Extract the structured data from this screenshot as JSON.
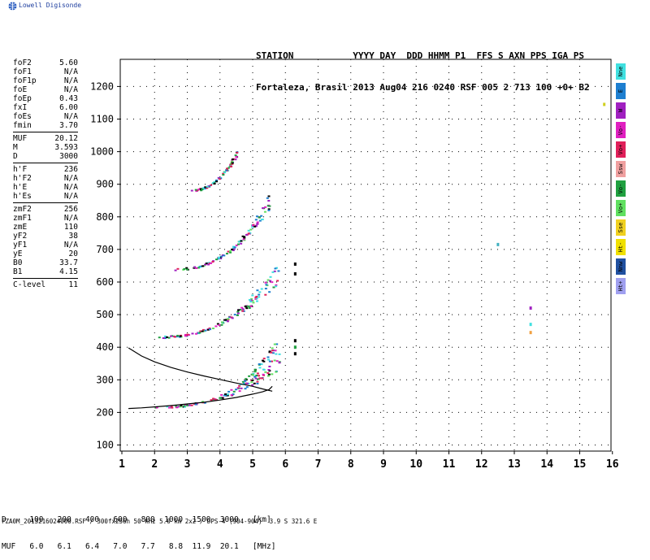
{
  "brand": {
    "name": "Lowell Digisonde",
    "logo_icon": "globe-logo-icon",
    "color": "#1f3f9f"
  },
  "header": {
    "labels": "STATION           YYYY DAY  DDD HHMM P1  FFS S AXN PPS IGA PS",
    "values": "Fortaleza, Brasil 2013 Aug04 216 0240 RSF 005 2 713 100 +0+ B2"
  },
  "params": [
    {
      "name": "foF2",
      "value": "5.60"
    },
    {
      "name": "foF1",
      "value": "N/A"
    },
    {
      "name": "foF1p",
      "value": "N/A"
    },
    {
      "name": "foE",
      "value": "N/A"
    },
    {
      "name": "foEp",
      "value": "0.43"
    },
    {
      "name": "fxI",
      "value": "6.00"
    },
    {
      "name": "foEs",
      "value": "N/A"
    },
    {
      "name": "fmin",
      "value": "3.70"
    },
    {
      "sep": true
    },
    {
      "name": "MUF",
      "value": "20.12"
    },
    {
      "name": "M",
      "value": "3.593"
    },
    {
      "name": "D",
      "value": "3000"
    },
    {
      "sep": true
    },
    {
      "name": "h'F",
      "value": "236"
    },
    {
      "name": "h'F2",
      "value": "N/A"
    },
    {
      "name": "h'E",
      "value": "N/A"
    },
    {
      "name": "h'Es",
      "value": "N/A"
    },
    {
      "sep": true
    },
    {
      "name": "zmF2",
      "value": "256"
    },
    {
      "name": "zmF1",
      "value": "N/A"
    },
    {
      "name": "zmE",
      "value": "110"
    },
    {
      "name": "yF2",
      "value": "38"
    },
    {
      "name": "yF1",
      "value": "N/A"
    },
    {
      "name": "yE",
      "value": "20"
    },
    {
      "name": "B0",
      "value": "33.7"
    },
    {
      "name": "B1",
      "value": "4.15"
    },
    {
      "sep": true
    },
    {
      "name": "C-level",
      "value": "11"
    }
  ],
  "legend": [
    {
      "label": "Nne",
      "color": "#40e0e0"
    },
    {
      "label": "E",
      "color": "#1e7fd0"
    },
    {
      "label": "W",
      "color": "#a020c0"
    },
    {
      "label": "Vo-",
      "color": "#e020c0"
    },
    {
      "label": "Vo+",
      "color": "#e0205a"
    },
    {
      "label": "Ssw",
      "color": "#f0a0a0"
    },
    {
      "label": "Vo-",
      "color": "#20a040"
    },
    {
      "label": "Vo+",
      "color": "#60e060"
    },
    {
      "label": "Sse",
      "color": "#f0d020"
    },
    {
      "label": "Ht-",
      "color": "#f0e000"
    },
    {
      "label": "Nnw",
      "color": "#2050a0"
    },
    {
      "label": "Ht+",
      "color": "#a0a0f0"
    }
  ],
  "muf_table": {
    "d_row": "D     100   200   400   600   800  1000  1500  3000   [km]",
    "muf_row": "MUF   6.0   6.1   6.4   7.0   7.7   8.8  11.9  20.1   [MHz]"
  },
  "footer": "FZA0M_2013216024000.RSF / 300fx256h 50 kHz 5.0 km 2x2 / DPS-4 (904-904)  3.9 S 321.6 E",
  "chart_data": {
    "type": "scatter",
    "xlim": [
      1,
      16
    ],
    "ylim": [
      100,
      1300
    ],
    "x_ticks": [
      1,
      2,
      3,
      4,
      5,
      6,
      7,
      8,
      9,
      10,
      11,
      12,
      13,
      14,
      15,
      16
    ],
    "y_ticks": [
      100,
      200,
      300,
      400,
      500,
      600,
      700,
      800,
      900,
      1000,
      1100,
      1200
    ],
    "grid": "dotted",
    "profile_upper": [
      [
        1.2,
        398
      ],
      [
        1.6,
        373
      ],
      [
        2.0,
        355
      ],
      [
        2.5,
        338
      ],
      [
        3.0,
        324
      ],
      [
        3.5,
        312
      ],
      [
        4.0,
        301
      ],
      [
        4.5,
        290
      ],
      [
        5.0,
        280
      ],
      [
        5.3,
        272
      ],
      [
        5.6,
        265
      ]
    ],
    "profile_lower": [
      [
        1.2,
        212
      ],
      [
        1.6,
        214
      ],
      [
        2.0,
        217
      ],
      [
        2.5,
        221
      ],
      [
        3.0,
        226
      ],
      [
        3.5,
        231
      ],
      [
        4.0,
        238
      ],
      [
        4.5,
        246
      ],
      [
        5.0,
        256
      ],
      [
        5.3,
        263
      ],
      [
        5.5,
        270
      ],
      [
        5.6,
        280
      ]
    ],
    "echo_traces": [
      {
        "name": "1st hop",
        "x0": 2.0,
        "x1": 5.8,
        "h0": 217,
        "h1": 330,
        "steep": 4
      },
      {
        "name": "2nd hop",
        "x0": 2.1,
        "x1": 5.8,
        "h0": 432,
        "h1": 600,
        "steep": 3
      },
      {
        "name": "3rd hop",
        "x0": 2.6,
        "x1": 5.5,
        "h0": 640,
        "h1": 820,
        "steep": 2
      },
      {
        "name": "4th hop",
        "x0": 3.0,
        "x1": 4.5,
        "h0": 880,
        "h1": 980,
        "steep": 1
      }
    ],
    "scatter_points": [
      {
        "x": 6.3,
        "y": 655,
        "color": "#000000"
      },
      {
        "x": 6.3,
        "y": 625,
        "color": "#000000"
      },
      {
        "x": 6.3,
        "y": 420,
        "color": "#000000"
      },
      {
        "x": 6.3,
        "y": 400,
        "color": "#20a040"
      },
      {
        "x": 6.3,
        "y": 380,
        "color": "#000000"
      },
      {
        "x": 12.5,
        "y": 715,
        "color": "#40b0c0"
      },
      {
        "x": 13.5,
        "y": 520,
        "color": "#a020c0"
      },
      {
        "x": 13.5,
        "y": 470,
        "color": "#40e0e0"
      },
      {
        "x": 13.5,
        "y": 445,
        "color": "#f0a040"
      },
      {
        "x": 15.75,
        "y": 1145,
        "color": "#d0d020"
      }
    ]
  }
}
